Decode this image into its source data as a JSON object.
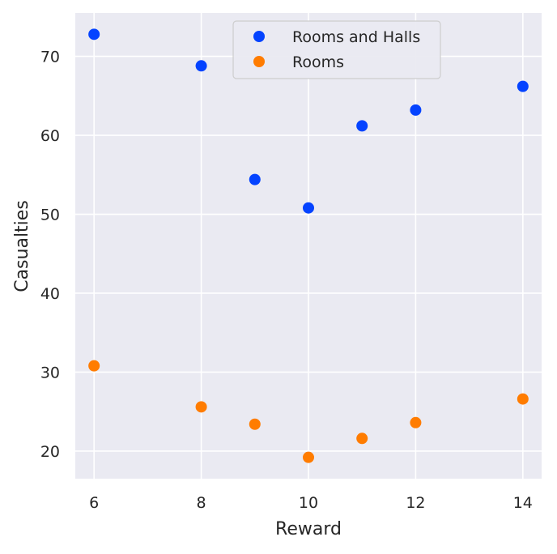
{
  "chart_data": {
    "type": "scatter",
    "xlabel": "Reward",
    "ylabel": "Casualties",
    "xlim": [
      5.65,
      14.35
    ],
    "ylim": [
      16.5,
      75.5
    ],
    "x_ticks": [
      6,
      8,
      10,
      12,
      14
    ],
    "y_ticks": [
      20,
      30,
      40,
      50,
      60,
      70
    ],
    "grid": true,
    "legend_position": "top-center",
    "background_color": "#eaeaf2",
    "grid_color": "#ffffff",
    "series": [
      {
        "name": "Rooms and Halls",
        "color": "#0443ff",
        "points": [
          {
            "x": 6,
            "y": 72.8
          },
          {
            "x": 8,
            "y": 68.8
          },
          {
            "x": 9,
            "y": 54.4
          },
          {
            "x": 10,
            "y": 50.8
          },
          {
            "x": 11,
            "y": 61.2
          },
          {
            "x": 12,
            "y": 63.2
          },
          {
            "x": 14,
            "y": 66.2
          }
        ]
      },
      {
        "name": "Rooms",
        "color": "#ff7c00",
        "points": [
          {
            "x": 6,
            "y": 30.8
          },
          {
            "x": 8,
            "y": 25.6
          },
          {
            "x": 9,
            "y": 23.4
          },
          {
            "x": 10,
            "y": 19.2
          },
          {
            "x": 11,
            "y": 21.6
          },
          {
            "x": 12,
            "y": 23.6
          },
          {
            "x": 14,
            "y": 26.6
          }
        ]
      }
    ]
  }
}
